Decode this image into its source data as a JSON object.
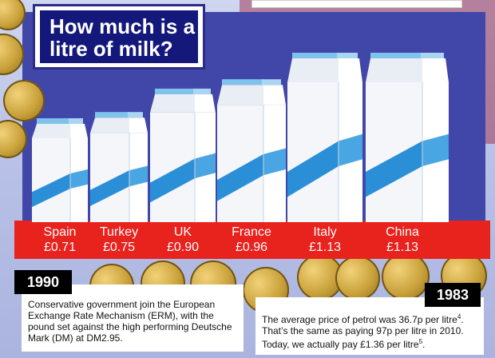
{
  "title": "How much is a litre of milk?",
  "chart_data": {
    "type": "bar",
    "title": "How much is a litre of milk?",
    "categories": [
      "Spain",
      "Turkey",
      "UK",
      "France",
      "Italy",
      "China"
    ],
    "value_labels": [
      "£0.71",
      "£0.75",
      "£0.90",
      "£0.96",
      "£1.13",
      "£1.13"
    ],
    "values": [
      0.71,
      0.75,
      0.9,
      0.96,
      1.13,
      1.13
    ],
    "unit": "£ per litre",
    "ylim": [
      0,
      1.2
    ],
    "marks": "milk-carton pictograms",
    "colors": {
      "carton": "#ffffff",
      "stripe": "#2a8fd6",
      "cap": "#7fc3ec",
      "label_band": "#e8221d"
    }
  },
  "notes": [
    {
      "year": "1990",
      "text": "Conservative government join the European Exchange Rate Mechanism (ERM), with the pound set against the high performing Deutsche Mark (DM) at DM2.95."
    },
    {
      "year": "1983",
      "line1": "The average price of petrol was 36.7p per litre",
      "line1_ref": "4",
      "line1_end": ".",
      "line2": "That’s the same as paying 97p per litre in 2010.",
      "line3": "Today, we actually pay £1.36 per litre",
      "line3_ref": "5",
      "line3_end": "."
    }
  ]
}
